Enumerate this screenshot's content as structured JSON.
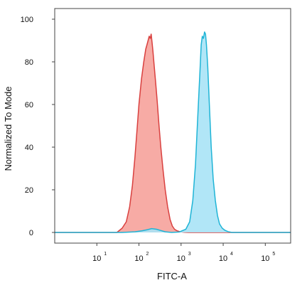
{
  "chart_data": {
    "type": "area",
    "xlabel": "FITC-A",
    "ylabel": "Normalized To Mode",
    "x_scale": "log",
    "xlim": [
      1,
      400000
    ],
    "ylim": [
      -5,
      105
    ],
    "y_ticks": [
      0,
      20,
      40,
      60,
      80,
      100
    ],
    "x_ticks": [
      {
        "value": 10,
        "base": "10",
        "exp": "1"
      },
      {
        "value": 100,
        "base": "10",
        "exp": "2"
      },
      {
        "value": 1000,
        "base": "10",
        "exp": "3"
      },
      {
        "value": 10000,
        "base": "10",
        "exp": "4"
      },
      {
        "value": 100000,
        "base": "10",
        "exp": "5"
      }
    ],
    "grid": false,
    "series": [
      {
        "color": "#d9403f",
        "fill": "#f6a29b",
        "x": [
          1,
          30,
          40,
          50,
          60,
          70,
          80,
          90,
          100,
          115,
          130,
          145,
          155,
          165,
          175,
          185,
          195,
          205,
          215,
          230,
          250,
          270,
          300,
          330,
          370,
          420,
          480,
          550,
          620,
          700,
          800,
          950,
          1200,
          1500,
          400000
        ],
        "y": [
          0,
          0,
          2,
          5,
          12,
          22,
          35,
          48,
          60,
          72,
          80,
          86,
          88,
          90,
          92,
          91,
          93,
          89,
          85,
          78,
          70,
          62,
          50,
          40,
          30,
          20,
          12,
          6,
          3,
          1.5,
          0.8,
          0.3,
          0.1,
          0,
          0
        ]
      },
      {
        "color": "#1fb4d6",
        "fill": "#a8e3f6",
        "x": [
          1,
          40,
          80,
          120,
          160,
          200,
          260,
          330,
          420,
          600,
          900,
          1300,
          1600,
          1900,
          2200,
          2500,
          2800,
          3000,
          3200,
          3400,
          3600,
          3800,
          4000,
          4300,
          4700,
          5200,
          5800,
          6500,
          7300,
          8200,
          9500,
          11000,
          13000,
          16000,
          400000
        ],
        "y": [
          0,
          0,
          0.3,
          0.8,
          1.3,
          1.8,
          1.5,
          0.9,
          0.3,
          0,
          0.2,
          1.5,
          5,
          15,
          32,
          55,
          75,
          88,
          92,
          91,
          94,
          93,
          88,
          78,
          60,
          40,
          25,
          15,
          8,
          4,
          2,
          1,
          0.4,
          0,
          0
        ]
      }
    ]
  }
}
